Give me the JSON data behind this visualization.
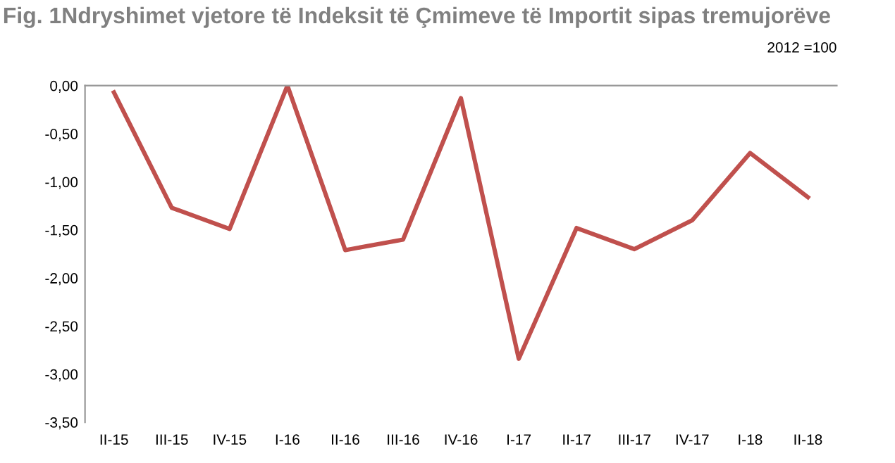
{
  "chart_data": {
    "type": "line",
    "title": "Fig. 1Ndryshimet vjetore të Indeksit të Çmimeve të Importit sipas tremujorëve",
    "annotations": [
      "2012 =100"
    ],
    "categories": [
      "II-15",
      "III-15",
      "IV-15",
      "I-16",
      "II-16",
      "III-16",
      "IV-16",
      "I-17",
      "II-17",
      "III-17",
      "IV-17",
      "I-18",
      "II-18"
    ],
    "series": [
      {
        "color": "#c0504d",
        "values": [
          -0.07,
          -1.27,
          -1.49,
          0.0,
          -1.71,
          -1.6,
          -0.13,
          -2.84,
          -1.48,
          -1.7,
          -1.4,
          -0.7,
          -1.16
        ]
      }
    ],
    "ylim": [
      -3.5,
      0
    ],
    "yticks": [
      {
        "value": 0,
        "label": "0,00"
      },
      {
        "value": -0.5,
        "label": "-0,50"
      },
      {
        "value": -1,
        "label": "-1,00"
      },
      {
        "value": -1.5,
        "label": "-1,50"
      },
      {
        "value": -2,
        "label": "-2,00"
      },
      {
        "value": -2.5,
        "label": "-2,50"
      },
      {
        "value": -3,
        "label": "-3,00"
      },
      {
        "value": -3.5,
        "label": "-3,50"
      }
    ],
    "grid": false,
    "legend": false,
    "marker": "none",
    "line_style": "solid"
  }
}
